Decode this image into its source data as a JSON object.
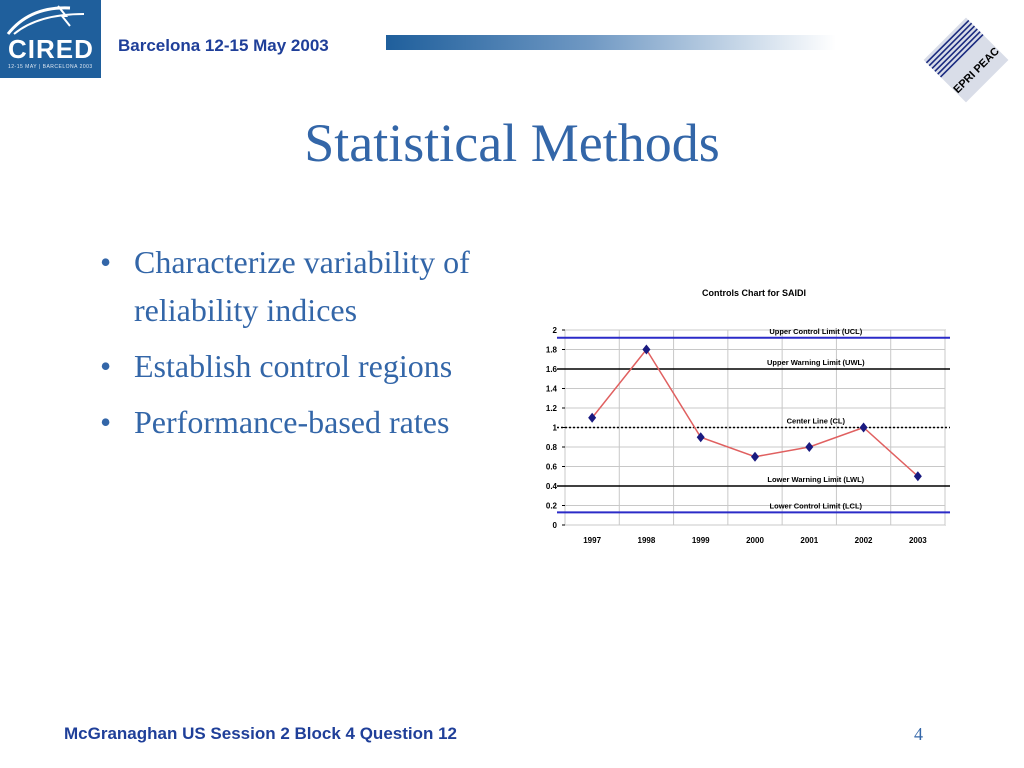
{
  "header": {
    "logo_text": "CIRED",
    "logo_subtext": "12-15 MAY | BARCELONA 2003",
    "event": "Barcelona  12-15 May 2003",
    "right_logo_text": "EPRI PEAC"
  },
  "title": "Statistical Methods",
  "bullets": [
    "Characterize variability of reliability indices",
    "Establish control regions",
    "Performance-based rates"
  ],
  "footer": {
    "left": "McGranaghan US Session 2  Block 4 Question 12",
    "page_number": "4"
  },
  "colors": {
    "title": "#3366a8",
    "header_text": "#1f3f99",
    "data_line": "#e06060",
    "marker": "#1a1a80",
    "control_limit": "#2b2bc8",
    "warning_limit": "#000000"
  },
  "chart_data": {
    "type": "line",
    "title": "Controls Chart for SAIDI",
    "categories": [
      "1997",
      "1998",
      "1999",
      "2000",
      "2001",
      "2002",
      "2003"
    ],
    "values": [
      1.1,
      1.8,
      0.9,
      0.7,
      0.8,
      1.0,
      0.5
    ],
    "ylim": [
      0,
      2
    ],
    "yticks": [
      "2",
      "1.8",
      "1.6",
      "1.4",
      "1.2",
      "1",
      "0.8",
      "0.6",
      "0.4",
      "0.2",
      "0"
    ],
    "grid": true,
    "reference_lines": [
      {
        "label": "Upper Control Limit (UCL)",
        "value": 1.92,
        "style": "control"
      },
      {
        "label": "Upper Warning Limit (UWL)",
        "value": 1.6,
        "style": "warning"
      },
      {
        "label": "Center Line (CL)",
        "value": 1.0,
        "style": "center"
      },
      {
        "label": "Lower Warning Limit (LWL)",
        "value": 0.4,
        "style": "warning"
      },
      {
        "label": "Lower Control Limit (LCL)",
        "value": 0.13,
        "style": "control"
      }
    ]
  }
}
